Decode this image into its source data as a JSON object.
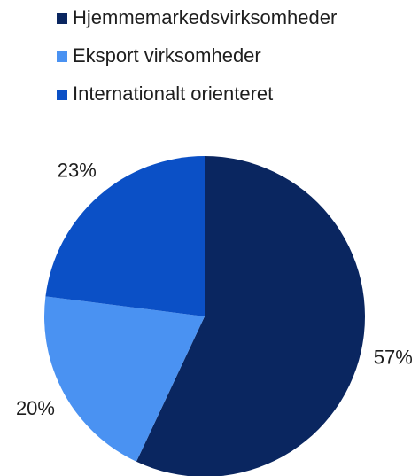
{
  "chart_data": {
    "type": "pie",
    "categories": [
      "Hjemmemarkedsvirksomheder",
      "Eksport virksomheder",
      "Internationalt orienteret"
    ],
    "values": [
      57,
      20,
      23
    ],
    "value_labels": [
      "57%",
      "20%",
      "23%"
    ],
    "colors": [
      "#0a2660",
      "#4a92f2",
      "#0b50c6"
    ],
    "legend": "top-left"
  }
}
